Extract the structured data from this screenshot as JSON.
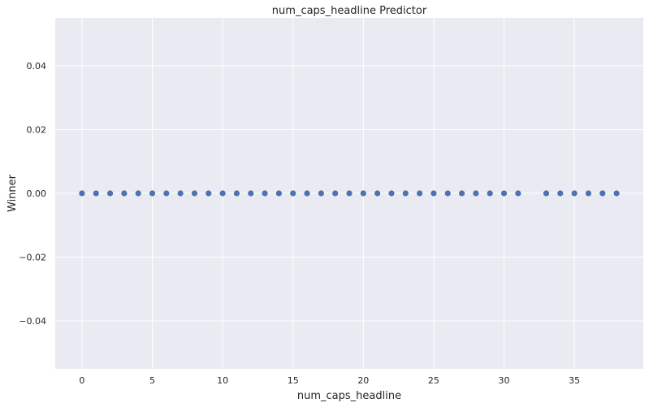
{
  "chart_data": {
    "type": "scatter",
    "title": "num_caps_headline Predictor",
    "xlabel": "num_caps_headline",
    "ylabel": "Winner",
    "x": [
      0,
      1,
      2,
      3,
      4,
      5,
      6,
      7,
      8,
      9,
      10,
      11,
      12,
      13,
      14,
      15,
      16,
      17,
      18,
      19,
      20,
      21,
      22,
      23,
      24,
      25,
      26,
      27,
      28,
      29,
      30,
      31,
      33,
      34,
      35,
      36,
      37,
      38
    ],
    "y": [
      0,
      0,
      0,
      0,
      0,
      0,
      0,
      0,
      0,
      0,
      0,
      0,
      0,
      0,
      0,
      0,
      0,
      0,
      0,
      0,
      0,
      0,
      0,
      0,
      0,
      0,
      0,
      0,
      0,
      0,
      0,
      0,
      0,
      0,
      0,
      0,
      0,
      0
    ],
    "xlim": [
      -1.9,
      39.9
    ],
    "ylim": [
      -0.055,
      0.055
    ],
    "xticks": [
      0,
      5,
      10,
      15,
      20,
      25,
      30,
      35
    ],
    "xtick_labels": [
      "0",
      "5",
      "10",
      "15",
      "20",
      "25",
      "30",
      "35"
    ],
    "yticks": [
      0.04,
      0.02,
      0.0,
      -0.02,
      -0.04
    ],
    "ytick_labels": [
      "0.04",
      "0.02",
      "0.00",
      "−0.02",
      "−0.04"
    ],
    "grid": true,
    "background_color": "#eaeaf2",
    "grid_color": "#ffffff",
    "marker_color": "#4c72b0"
  }
}
